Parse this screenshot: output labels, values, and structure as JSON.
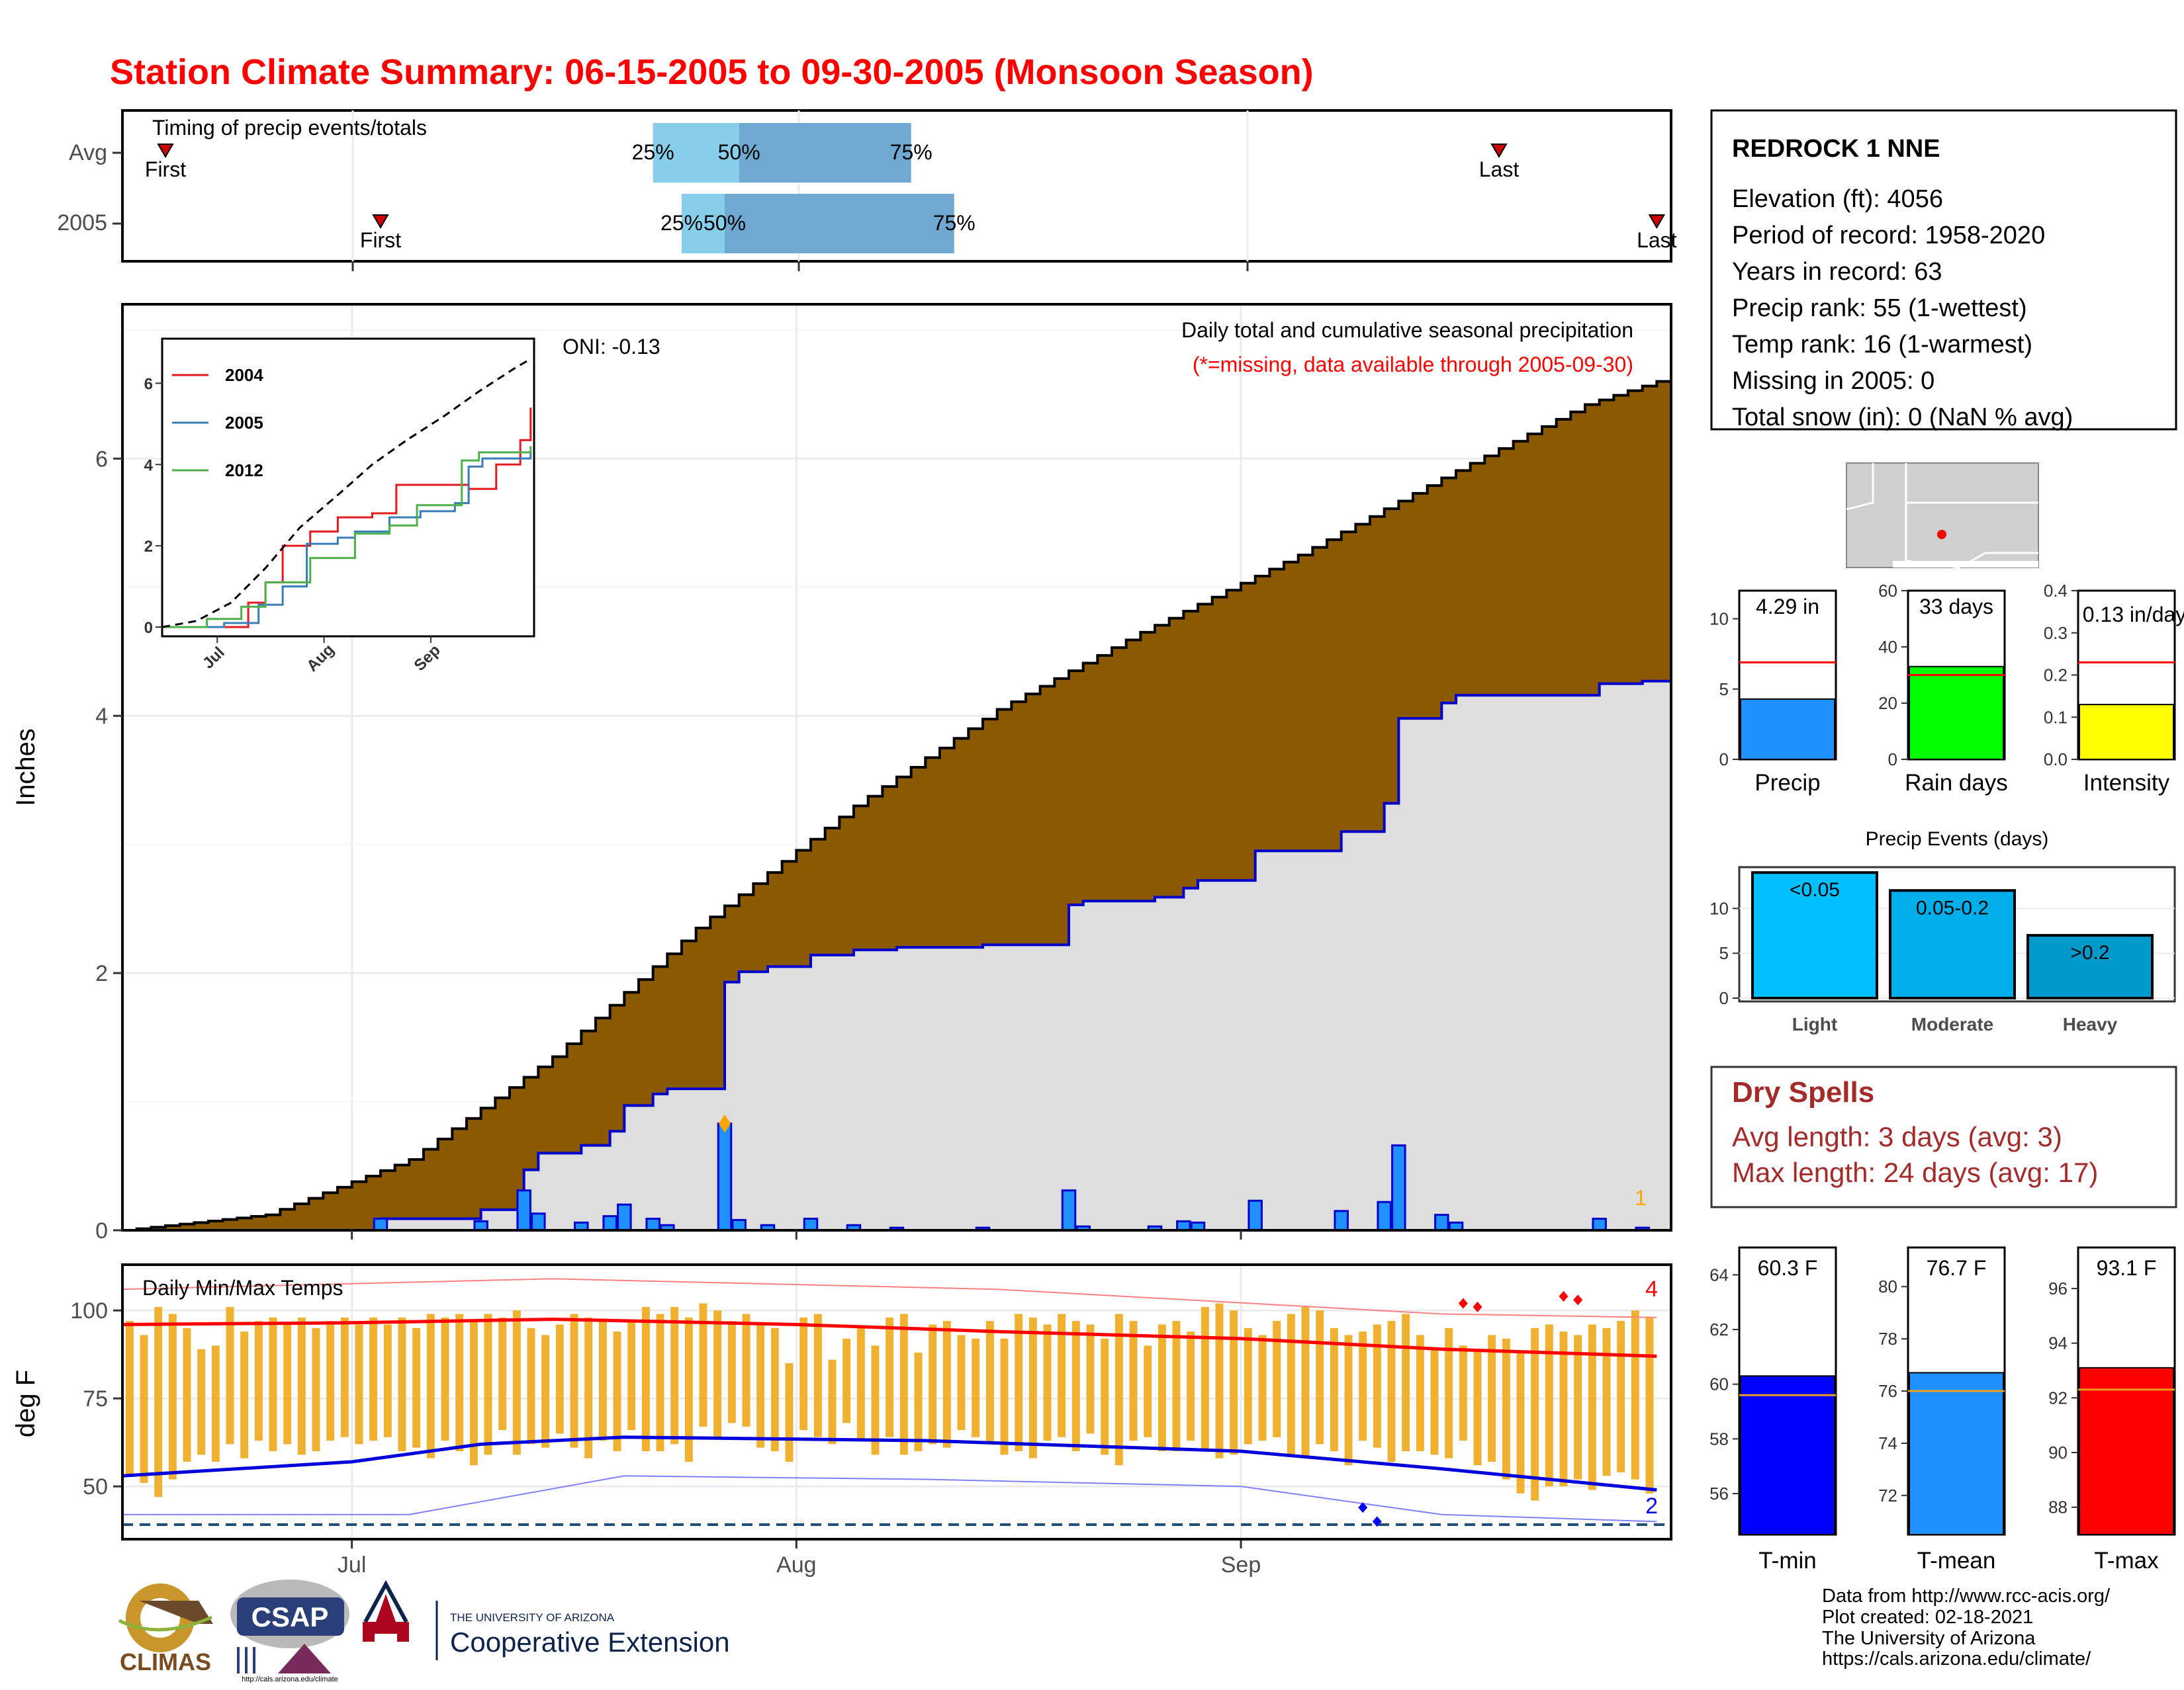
{
  "title": "Station Climate Summary: 06-15-2005 to 09-30-2005 (Monsoon Season)",
  "colors": {
    "title": "#ff0000",
    "brown": "#8b5a00",
    "precip_blue": "#1e90ff",
    "temp_orange": "#f0b030",
    "dry_spells": "#a52a2a"
  },
  "timing": {
    "label": "Timing of precip events/totals",
    "rows": [
      {
        "name": "Avg",
        "first": "2005-06-18",
        "q25": "2005-07-22",
        "q50": "2005-07-28",
        "q75": "2005-08-09",
        "last": "2005-09-19"
      },
      {
        "name": "2005",
        "first": "2005-07-03",
        "q25": "2005-07-24",
        "q50": "2005-07-27",
        "q75": "2005-08-12",
        "last": "2005-09-30"
      }
    ],
    "labels": {
      "first": "First",
      "last": "Last",
      "q25": "25%",
      "q50": "50%",
      "q75": "75%"
    }
  },
  "precip_panel": {
    "ylabel": "Inches",
    "header": "Daily total and cumulative seasonal precipitation",
    "missing_note": "(*=missing, data available through 2005-09-30)",
    "oni": "ONI: -0.13",
    "corner_count": "1",
    "x_ticks": [
      "Jul",
      "Aug",
      "Sep"
    ],
    "y_ticks": [
      "0",
      "2",
      "4",
      "6"
    ]
  },
  "inset": {
    "legend": [
      "2004",
      "2005",
      "2012"
    ],
    "legend_colors": [
      "#e41a1c",
      "#377eb8",
      "#4daf4a"
    ],
    "x_ticks": [
      "Jul",
      "Aug",
      "Sep"
    ],
    "y_ticks": [
      "0",
      "2",
      "4",
      "6"
    ]
  },
  "temp_panel": {
    "label": "Daily Min/Max Temps",
    "ylabel": "deg F",
    "count_max": "4",
    "count_min": "2",
    "y_ticks": [
      "50",
      "75",
      "100"
    ]
  },
  "station": {
    "name": "REDROCK 1 NNE",
    "lines": [
      "Elevation (ft): 4056",
      "Period of record: 1958-2020",
      "Years in record: 63",
      "Precip rank: 55 (1-wettest)",
      "Temp rank: 16 (1-warmest)",
      "Missing in 2005: 0",
      "Total snow (in): 0 (NaN % avg)"
    ]
  },
  "mini_bars": [
    {
      "label": "Precip",
      "value_text": "4.29 in",
      "value": 4.29,
      "avg": 6.9,
      "ymax": 12,
      "ticks": [
        "0",
        "5",
        "10"
      ],
      "color": "#1e90ff"
    },
    {
      "label": "Rain days",
      "value_text": "33 days",
      "value": 33,
      "avg": 30,
      "ymax": 60,
      "ticks": [
        "0",
        "20",
        "40",
        "60"
      ],
      "color": "#00ff00"
    },
    {
      "label": "Intensity",
      "value_text": "0.13 in/day",
      "value": 0.13,
      "avg": 0.23,
      "ymax": 0.4,
      "ticks": [
        "0.0",
        "0.1",
        "0.2",
        "0.3",
        "0.4"
      ],
      "color": "#ffff00"
    }
  ],
  "events": {
    "title": "Precip Events (days)",
    "categories": [
      "Light",
      "Moderate",
      "Heavy"
    ],
    "labels": [
      "<0.05",
      "0.05-0.2",
      ">0.2"
    ],
    "values": [
      14,
      12,
      7
    ],
    "ticks": [
      "0",
      "5",
      "10"
    ],
    "colors": [
      "#00bfff",
      "#00aeea",
      "#0099cc"
    ]
  },
  "dry_spells": {
    "title": "Dry Spells",
    "lines": [
      "Avg length: 3 days (avg: 3)",
      "Max length: 24 days (avg: 17)"
    ]
  },
  "temp_bars": [
    {
      "label": "T-min",
      "value_text": "60.3 F",
      "value": 60.3,
      "avg": 59.6,
      "ymin": 54.5,
      "ymax": 65,
      "ticks": [
        "56",
        "58",
        "60",
        "62",
        "64"
      ],
      "color": "#0000ff"
    },
    {
      "label": "T-mean",
      "value_text": "76.7 F",
      "value": 76.7,
      "avg": 76.0,
      "ymin": 70.5,
      "ymax": 81.5,
      "ticks": [
        "72",
        "74",
        "76",
        "78",
        "80"
      ],
      "color": "#1e90ff"
    },
    {
      "label": "T-max",
      "value_text": "93.1 F",
      "value": 93.1,
      "avg": 92.3,
      "ymin": 87.0,
      "ymax": 97.5,
      "ticks": [
        "88",
        "90",
        "92",
        "94",
        "96"
      ],
      "color": "#ff0000"
    }
  ],
  "footer": {
    "lines": [
      "Data from http://www.rcc-acis.org/",
      "Plot created: 02-18-2021",
      "The University of Arizona",
      "https://cals.arizona.edu/climate/"
    ],
    "logos": {
      "climas": "CLIMAS",
      "csap": "CSAP",
      "csap_url": "http://cals.arizona.edu/climate",
      "ua_small": "THE UNIVERSITY OF ARIZONA",
      "ua_big": "Cooperative Extension"
    }
  },
  "chart_data": {
    "type": "area",
    "x_start": "2005-06-15",
    "x_end": "2005-09-30",
    "ylim": [
      0,
      7.2
    ],
    "daily_precip": [
      {
        "date": "2005-07-03",
        "value": 0.09
      },
      {
        "date": "2005-07-10",
        "value": 0.07
      },
      {
        "date": "2005-07-13",
        "value": 0.31
      },
      {
        "date": "2005-07-14",
        "value": 0.13
      },
      {
        "date": "2005-07-17",
        "value": 0.06
      },
      {
        "date": "2005-07-19",
        "value": 0.11
      },
      {
        "date": "2005-07-20",
        "value": 0.2
      },
      {
        "date": "2005-07-22",
        "value": 0.09
      },
      {
        "date": "2005-07-23",
        "value": 0.04
      },
      {
        "date": "2005-07-27",
        "value": 0.83
      },
      {
        "date": "2005-07-28",
        "value": 0.08
      },
      {
        "date": "2005-07-30",
        "value": 0.04
      },
      {
        "date": "2005-08-02",
        "value": 0.09
      },
      {
        "date": "2005-08-05",
        "value": 0.04
      },
      {
        "date": "2005-08-08",
        "value": 0.02
      },
      {
        "date": "2005-08-14",
        "value": 0.02
      },
      {
        "date": "2005-08-20",
        "value": 0.31
      },
      {
        "date": "2005-08-21",
        "value": 0.03
      },
      {
        "date": "2005-08-26",
        "value": 0.03
      },
      {
        "date": "2005-08-28",
        "value": 0.07
      },
      {
        "date": "2005-08-29",
        "value": 0.06
      },
      {
        "date": "2005-09-02",
        "value": 0.23
      },
      {
        "date": "2005-09-08",
        "value": 0.15
      },
      {
        "date": "2005-09-11",
        "value": 0.22
      },
      {
        "date": "2005-09-12",
        "value": 0.66
      },
      {
        "date": "2005-09-15",
        "value": 0.12
      },
      {
        "date": "2005-09-16",
        "value": 0.06
      },
      {
        "date": "2005-09-26",
        "value": 0.09
      },
      {
        "date": "2005-09-29",
        "value": 0.02
      }
    ],
    "avg_cumulative": [
      {
        "date": "2005-06-15",
        "value": 0.0
      },
      {
        "date": "2005-06-25",
        "value": 0.12
      },
      {
        "date": "2005-07-05",
        "value": 0.55
      },
      {
        "date": "2005-07-15",
        "value": 1.35
      },
      {
        "date": "2005-07-25",
        "value": 2.35
      },
      {
        "date": "2005-08-05",
        "value": 3.3
      },
      {
        "date": "2005-08-15",
        "value": 4.05
      },
      {
        "date": "2005-08-25",
        "value": 4.65
      },
      {
        "date": "2005-09-05",
        "value": 5.25
      },
      {
        "date": "2005-09-15",
        "value": 5.85
      },
      {
        "date": "2005-09-25",
        "value": 6.42
      },
      {
        "date": "2005-09-30",
        "value": 6.6
      }
    ],
    "inset_series": [
      {
        "name": "2004",
        "points": [
          [
            "2005-06-15",
            0
          ],
          [
            "2005-07-05",
            0
          ],
          [
            "2005-07-10",
            0.6
          ],
          [
            "2005-07-15",
            1.1
          ],
          [
            "2005-07-20",
            2.0
          ],
          [
            "2005-07-28",
            2.35
          ],
          [
            "2005-08-05",
            2.7
          ],
          [
            "2005-08-15",
            2.8
          ],
          [
            "2005-08-22",
            3.5
          ],
          [
            "2005-09-05",
            3.5
          ],
          [
            "2005-09-12",
            3.4
          ],
          [
            "2005-09-20",
            4.0
          ],
          [
            "2005-09-27",
            4.6
          ],
          [
            "2005-09-30",
            5.4
          ]
        ]
      },
      {
        "name": "2005",
        "points": [
          [
            "2005-06-15",
            0
          ],
          [
            "2005-07-03",
            0.1
          ],
          [
            "2005-07-13",
            0.55
          ],
          [
            "2005-07-20",
            1.0
          ],
          [
            "2005-07-27",
            2.05
          ],
          [
            "2005-08-05",
            2.2
          ],
          [
            "2005-08-10",
            2.35
          ],
          [
            "2005-08-20",
            2.7
          ],
          [
            "2005-08-29",
            2.85
          ],
          [
            "2005-09-08",
            3.05
          ],
          [
            "2005-09-12",
            3.95
          ],
          [
            "2005-09-16",
            4.15
          ],
          [
            "2005-09-30",
            4.29
          ]
        ]
      },
      {
        "name": "2012",
        "points": [
          [
            "2005-06-15",
            0
          ],
          [
            "2005-06-28",
            0.2
          ],
          [
            "2005-07-08",
            0.5
          ],
          [
            "2005-07-15",
            1.1
          ],
          [
            "2005-07-28",
            1.7
          ],
          [
            "2005-08-10",
            2.3
          ],
          [
            "2005-08-20",
            2.5
          ],
          [
            "2005-08-28",
            3.0
          ],
          [
            "2005-09-05",
            3.0
          ],
          [
            "2005-09-10",
            4.1
          ],
          [
            "2005-09-15",
            4.3
          ],
          [
            "2005-09-30",
            4.45
          ]
        ]
      }
    ],
    "inset_avg": [
      [
        "2005-06-15",
        0
      ],
      [
        "2005-06-25",
        0.15
      ],
      [
        "2005-07-05",
        0.6
      ],
      [
        "2005-07-15",
        1.45
      ],
      [
        "2005-07-25",
        2.45
      ],
      [
        "2005-08-05",
        3.25
      ],
      [
        "2005-08-15",
        4.0
      ],
      [
        "2005-08-25",
        4.6
      ],
      [
        "2005-09-05",
        5.2
      ],
      [
        "2005-09-15",
        5.8
      ],
      [
        "2005-09-25",
        6.35
      ],
      [
        "2005-09-30",
        6.6
      ]
    ],
    "temperature": {
      "ylim": [
        35,
        113
      ],
      "threshold_line": 32,
      "avg_max": [
        [
          "2005-06-15",
          96
        ],
        [
          "2005-07-01",
          96.5
        ],
        [
          "2005-07-15",
          97.5
        ],
        [
          "2005-08-01",
          96
        ],
        [
          "2005-08-15",
          94
        ],
        [
          "2005-09-01",
          92
        ],
        [
          "2005-09-15",
          89
        ],
        [
          "2005-09-30",
          87
        ]
      ],
      "avg_min": [
        [
          "2005-06-15",
          53
        ],
        [
          "2005-07-01",
          57
        ],
        [
          "2005-07-10",
          62
        ],
        [
          "2005-07-20",
          64
        ],
        [
          "2005-08-10",
          63
        ],
        [
          "2005-09-01",
          60
        ],
        [
          "2005-09-15",
          55
        ],
        [
          "2005-09-30",
          49
        ]
      ],
      "rec_max": [
        [
          "2005-06-15",
          106
        ],
        [
          "2005-07-15",
          109
        ],
        [
          "2005-08-15",
          106
        ],
        [
          "2005-09-15",
          99
        ],
        [
          "2005-09-30",
          98
        ]
      ],
      "rec_min": [
        [
          "2005-06-15",
          42
        ],
        [
          "2005-07-05",
          42
        ],
        [
          "2005-07-20",
          53
        ],
        [
          "2005-08-10",
          52
        ],
        [
          "2005-09-01",
          50
        ],
        [
          "2005-09-15",
          42
        ],
        [
          "2005-09-30",
          40
        ]
      ],
      "daily_max": [
        97,
        93,
        101,
        99,
        95,
        89,
        90,
        101,
        94,
        97,
        98,
        96,
        98,
        95,
        97,
        98,
        96,
        98,
        96,
        98,
        95,
        99,
        98,
        99,
        97,
        99,
        98,
        100,
        95,
        93,
        96,
        99,
        98,
        97,
        94,
        97,
        101,
        99,
        101,
        98,
        102,
        100,
        97,
        99,
        96,
        95,
        85,
        98,
        99,
        86,
        92,
        95,
        90,
        98,
        99,
        88,
        96,
        97,
        93,
        92,
        97,
        92,
        99,
        98,
        96,
        99,
        97,
        96,
        92,
        99,
        97,
        90,
        96,
        97,
        94,
        101,
        102,
        100,
        95,
        93,
        97,
        99,
        101,
        100,
        95,
        93,
        94,
        96,
        97,
        99,
        93,
        89,
        95,
        90,
        89,
        93,
        92,
        88,
        95,
        96,
        94,
        93,
        96,
        95,
        97,
        100,
        98
      ],
      "daily_min": [
        53,
        51,
        47,
        52,
        57,
        59,
        57,
        62,
        58,
        63,
        60,
        62,
        59,
        60,
        63,
        64,
        62,
        63,
        64,
        60,
        61,
        58,
        63,
        60,
        56,
        59,
        66,
        59,
        62,
        61,
        65,
        61,
        58,
        63,
        60,
        66,
        60,
        60,
        62,
        57,
        67,
        64,
        68,
        67,
        61,
        60,
        57,
        66,
        64,
        62,
        68,
        63,
        59,
        64,
        59,
        60,
        62,
        61,
        66,
        64,
        62,
        59,
        60,
        58,
        63,
        64,
        60,
        65,
        59,
        56,
        63,
        64,
        60,
        60,
        63,
        60,
        58,
        59,
        62,
        63,
        64,
        59,
        58,
        62,
        60,
        56,
        63,
        61,
        57,
        60,
        60,
        59,
        58,
        63,
        56,
        57,
        52,
        48,
        46,
        50,
        50,
        52,
        49,
        53,
        54,
        52,
        48
      ]
    }
  }
}
